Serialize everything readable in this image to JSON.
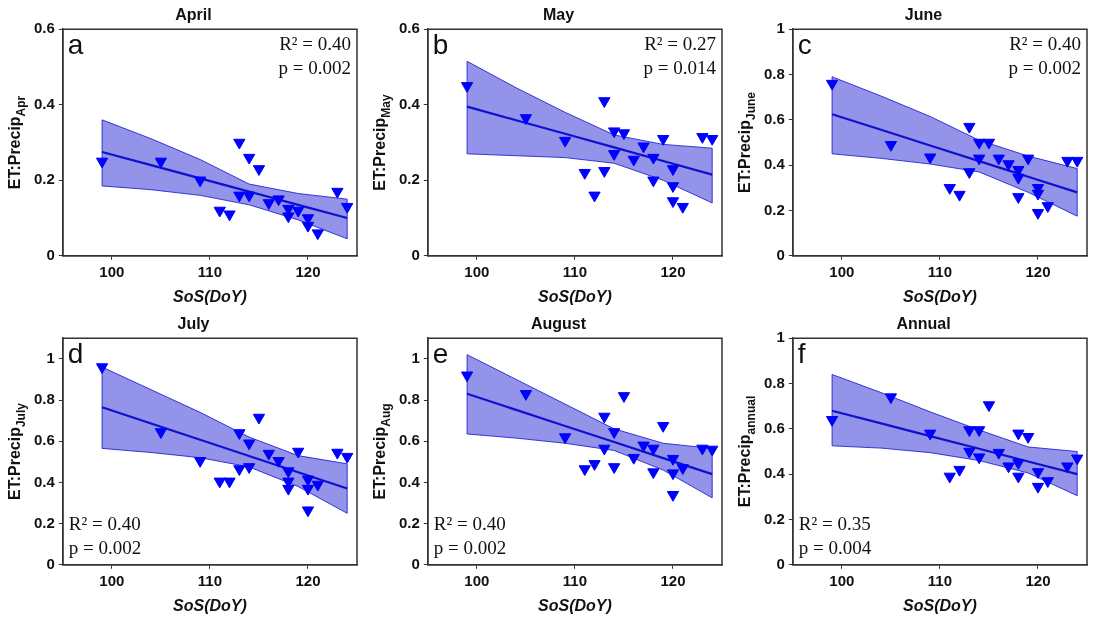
{
  "chart_data": [
    {
      "type": "scatter",
      "title": "April",
      "xlabel": "SoS(DoY)",
      "ylabel": "ET:Precip$_{Apr}$",
      "xlim": [
        95,
        125
      ],
      "xticks": [
        100,
        110,
        120
      ],
      "ylim": [
        0,
        0.6
      ],
      "yticks": [
        0,
        0.2,
        0.4,
        0.6
      ],
      "grid": false,
      "legend": false,
      "annotations": [
        "a",
        "R² = 0.40",
        "p = 0.002"
      ],
      "series": [
        {
          "type": "scatter",
          "marker": "triangle",
          "color": "#0000ff",
          "x": [
            99,
            105,
            109,
            111,
            112,
            113,
            113,
            114,
            114,
            115,
            116,
            117,
            118,
            118,
            119,
            120,
            120,
            121,
            123,
            124
          ],
          "values": [
            0.25,
            0.25,
            0.2,
            0.12,
            0.11,
            0.3,
            0.16,
            0.26,
            0.16,
            0.23,
            0.14,
            0.15,
            0.125,
            0.105,
            0.12,
            0.1,
            0.08,
            0.06,
            0.17,
            0.13
          ]
        },
        {
          "type": "line",
          "marker": "none",
          "color": "#1010d0",
          "x": [
            99,
            104,
            109,
            114,
            119,
            124
          ],
          "values": [
            0.275,
            0.24,
            0.205,
            0.17,
            0.135,
            0.1
          ],
          "lower": [
            0.185,
            0.175,
            0.16,
            0.135,
            0.095,
            0.045
          ],
          "upper": [
            0.36,
            0.31,
            0.255,
            0.19,
            0.165,
            0.15
          ]
        }
      ]
    },
    {
      "type": "scatter",
      "title": "May",
      "xlabel": "SoS(DoY)",
      "ylabel": "ET:Precip$_{May}$",
      "xlim": [
        95,
        125
      ],
      "xticks": [
        100,
        110,
        120
      ],
      "ylim": [
        0,
        0.6
      ],
      "yticks": [
        0,
        0.2,
        0.4,
        0.6
      ],
      "grid": false,
      "legend": false,
      "annotations": [
        "b",
        "R² = 0.27",
        "p = 0.014"
      ],
      "series": [
        {
          "type": "scatter",
          "marker": "triangle",
          "color": "#0000ff",
          "x": [
            99,
            105,
            109,
            111,
            112,
            113,
            113,
            114,
            114,
            115,
            116,
            117,
            118,
            118,
            119,
            120,
            120,
            120,
            121,
            123,
            124
          ],
          "values": [
            0.45,
            0.365,
            0.305,
            0.22,
            0.16,
            0.41,
            0.225,
            0.33,
            0.27,
            0.325,
            0.255,
            0.29,
            0.26,
            0.2,
            0.31,
            0.23,
            0.185,
            0.145,
            0.13,
            0.315,
            0.31
          ]
        },
        {
          "type": "line",
          "marker": "none",
          "color": "#1010d0",
          "x": [
            99,
            104,
            109,
            114,
            119,
            124
          ],
          "values": [
            0.395,
            0.359,
            0.323,
            0.287,
            0.251,
            0.215
          ],
          "lower": [
            0.27,
            0.265,
            0.26,
            0.245,
            0.2,
            0.14
          ],
          "upper": [
            0.515,
            0.445,
            0.38,
            0.32,
            0.295,
            0.285
          ]
        }
      ]
    },
    {
      "type": "scatter",
      "title": "June",
      "xlabel": "SoS(DoY)",
      "ylabel": "ET:Precip$_{June}$",
      "xlim": [
        95,
        125
      ],
      "xticks": [
        100,
        110,
        120
      ],
      "ylim": [
        0,
        1
      ],
      "yticks": [
        0,
        0.2,
        0.4,
        0.6,
        0.8,
        1
      ],
      "grid": false,
      "legend": false,
      "annotations": [
        "c",
        "R² = 0.40",
        "p = 0.002"
      ],
      "series": [
        {
          "type": "scatter",
          "marker": "triangle",
          "color": "#0000ff",
          "x": [
            99,
            105,
            109,
            111,
            112,
            113,
            113,
            114,
            114,
            115,
            116,
            117,
            118,
            118,
            118,
            119,
            120,
            120,
            120,
            121,
            123,
            124
          ],
          "values": [
            0.76,
            0.49,
            0.435,
            0.3,
            0.27,
            0.57,
            0.37,
            0.5,
            0.43,
            0.5,
            0.43,
            0.405,
            0.38,
            0.345,
            0.26,
            0.43,
            0.3,
            0.275,
            0.19,
            0.22,
            0.42,
            0.42
          ]
        },
        {
          "type": "line",
          "marker": "none",
          "color": "#1010d0",
          "x": [
            99,
            104,
            109,
            114,
            119,
            124
          ],
          "values": [
            0.625,
            0.556,
            0.487,
            0.418,
            0.349,
            0.28
          ],
          "lower": [
            0.45,
            0.43,
            0.405,
            0.37,
            0.28,
            0.175
          ],
          "upper": [
            0.79,
            0.705,
            0.615,
            0.51,
            0.44,
            0.385
          ]
        }
      ]
    },
    {
      "type": "scatter",
      "title": "July",
      "xlabel": "SoS(DoY)",
      "ylabel": "ET:Precip$_{July}$",
      "xlim": [
        95,
        125
      ],
      "xticks": [
        100,
        110,
        120
      ],
      "ylim": [
        0,
        1.1
      ],
      "yticks": [
        0,
        0.2,
        0.4,
        0.6,
        0.8,
        1
      ],
      "grid": false,
      "legend": false,
      "annotations": [
        "d",
        "R² = 0.40",
        "p = 0.002"
      ],
      "series": [
        {
          "type": "scatter",
          "marker": "triangle",
          "color": "#0000ff",
          "x": [
            99,
            105,
            109,
            111,
            112,
            113,
            113,
            114,
            114,
            115,
            116,
            117,
            118,
            118,
            118,
            119,
            120,
            120,
            120,
            121,
            123,
            124
          ],
          "values": [
            0.96,
            0.645,
            0.505,
            0.405,
            0.405,
            0.64,
            0.465,
            0.59,
            0.475,
            0.715,
            0.54,
            0.505,
            0.455,
            0.405,
            0.37,
            0.55,
            0.415,
            0.37,
            0.265,
            0.39,
            0.545,
            0.525
          ]
        },
        {
          "type": "line",
          "marker": "none",
          "color": "#1010d0",
          "x": [
            99,
            104,
            109,
            114,
            119,
            124
          ],
          "values": [
            0.765,
            0.686,
            0.607,
            0.528,
            0.449,
            0.37
          ],
          "lower": [
            0.565,
            0.545,
            0.52,
            0.475,
            0.38,
            0.25
          ],
          "upper": [
            0.96,
            0.85,
            0.74,
            0.62,
            0.53,
            0.49
          ]
        }
      ]
    },
    {
      "type": "scatter",
      "title": "August",
      "xlabel": "SoS(DoY)",
      "ylabel": "ET:Precip$_{Aug}$",
      "xlim": [
        95,
        125
      ],
      "xticks": [
        100,
        110,
        120
      ],
      "ylim": [
        0,
        1.1
      ],
      "yticks": [
        0,
        0.2,
        0.4,
        0.6,
        0.8,
        1
      ],
      "grid": false,
      "legend": false,
      "annotations": [
        "e",
        "R² = 0.40",
        "p = 0.002"
      ],
      "series": [
        {
          "type": "scatter",
          "marker": "triangle",
          "color": "#0000ff",
          "x": [
            99,
            105,
            109,
            111,
            112,
            113,
            113,
            114,
            114,
            115,
            116,
            117,
            118,
            118,
            119,
            120,
            120,
            120,
            121,
            123,
            124
          ],
          "values": [
            0.92,
            0.83,
            0.62,
            0.465,
            0.49,
            0.72,
            0.565,
            0.645,
            0.475,
            0.82,
            0.52,
            0.58,
            0.565,
            0.45,
            0.675,
            0.515,
            0.445,
            0.34,
            0.47,
            0.565,
            0.56
          ]
        },
        {
          "type": "line",
          "marker": "none",
          "color": "#1010d0",
          "x": [
            99,
            104,
            109,
            114,
            119,
            124
          ],
          "values": [
            0.83,
            0.752,
            0.674,
            0.596,
            0.518,
            0.44
          ],
          "lower": [
            0.635,
            0.615,
            0.59,
            0.555,
            0.46,
            0.325
          ],
          "upper": [
            1.02,
            0.9,
            0.78,
            0.66,
            0.59,
            0.565
          ]
        }
      ]
    },
    {
      "type": "scatter",
      "title": "Annual",
      "xlabel": "SoS(DoY)",
      "ylabel": "ET:Precip$_{annual}$",
      "xlim": [
        95,
        125
      ],
      "xticks": [
        100,
        110,
        120
      ],
      "ylim": [
        0,
        1
      ],
      "yticks": [
        0,
        0.2,
        0.4,
        0.6,
        0.8,
        1
      ],
      "grid": false,
      "legend": false,
      "annotations": [
        "f",
        "R² = 0.35",
        "p = 0.004"
      ],
      "series": [
        {
          "type": "scatter",
          "marker": "triangle",
          "color": "#0000ff",
          "x": [
            99,
            105,
            109,
            111,
            112,
            113,
            113,
            114,
            114,
            115,
            116,
            117,
            118,
            118,
            118,
            119,
            120,
            120,
            121,
            123,
            124
          ],
          "values": [
            0.64,
            0.74,
            0.58,
            0.39,
            0.42,
            0.595,
            0.5,
            0.595,
            0.475,
            0.705,
            0.495,
            0.435,
            0.58,
            0.45,
            0.39,
            0.565,
            0.41,
            0.345,
            0.37,
            0.435,
            0.47
          ]
        },
        {
          "type": "line",
          "marker": "none",
          "color": "#1010d0",
          "x": [
            99,
            104,
            109,
            114,
            119,
            124
          ],
          "values": [
            0.68,
            0.624,
            0.568,
            0.512,
            0.456,
            0.4
          ],
          "lower": [
            0.525,
            0.515,
            0.495,
            0.46,
            0.405,
            0.305
          ],
          "upper": [
            0.84,
            0.76,
            0.675,
            0.595,
            0.52,
            0.5
          ]
        }
      ]
    }
  ]
}
